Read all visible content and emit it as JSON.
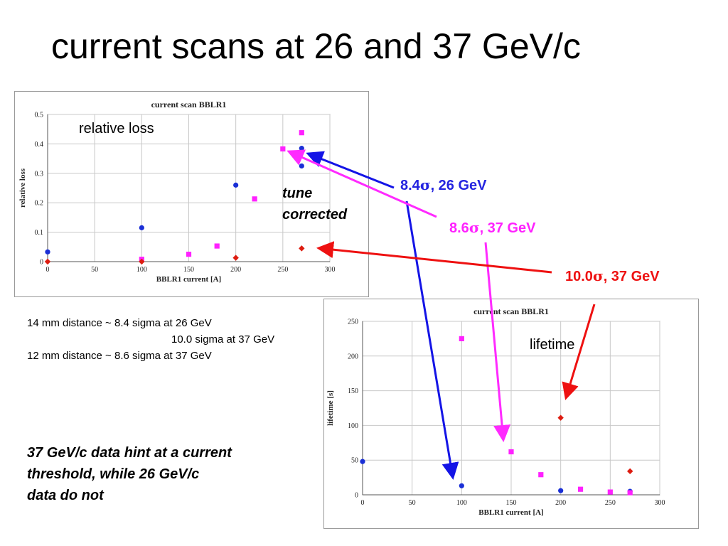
{
  "slide": {
    "title": "current scans at 26 and 37 GeV/c"
  },
  "colors": {
    "s84_26": "#1a2fd6",
    "s86_37": "#ff21ff",
    "s100_37": "#dd1c10",
    "arrow_blue": "#1414e6",
    "arrow_magenta": "#ff2aff",
    "arrow_red": "#ee1111"
  },
  "callouts": {
    "s84_26": {
      "value": "8.4",
      "sigma": "σ",
      "rest": ", 26 GeV"
    },
    "s86_37": {
      "value": "8.6",
      "sigma": "σ",
      "rest": ", 37 GeV"
    },
    "s100_37": {
      "value": "10.0",
      "sigma": "σ",
      "rest": ", 37 GeV"
    }
  },
  "annotations": {
    "tune_line1": "tune",
    "tune_line2": "corrected"
  },
  "notes": {
    "line1": "14 mm distance ~ 8.4 sigma at 26 GeV",
    "line2": "10.0 sigma at 37 GeV",
    "line3": "12 mm distance ~ 8.6 sigma at 37 GeV"
  },
  "conclusion": {
    "line1": "37 GeV/c data hint at a current",
    "line2": "threshold, while 26 GeV/c",
    "line3": "data do not"
  },
  "chart_data": [
    {
      "type": "scatter",
      "title": "current scan BBLR1",
      "inplot_label": "relative loss",
      "xlabel": "BBLR1 current [A]",
      "ylabel": "relative loss",
      "xlim": [
        0,
        300
      ],
      "ylim": [
        0,
        0.5
      ],
      "xticks": [
        0,
        50,
        100,
        150,
        200,
        250,
        300
      ],
      "yticks": [
        0,
        0.1,
        0.2,
        0.3,
        0.4,
        0.5
      ],
      "ytick_labels": [
        "0",
        "0.1",
        "0.2",
        "0.3",
        "0.4",
        "0.5"
      ],
      "grid": true,
      "series": [
        {
          "color": "#1a2fd6",
          "marker": "circle",
          "x": [
            0,
            100,
            200,
            270,
            270
          ],
          "y": [
            0.033,
            0.115,
            0.26,
            0.385,
            0.325
          ]
        },
        {
          "color": "#ff21ff",
          "marker": "square",
          "x": [
            100,
            150,
            180,
            220,
            250,
            270
          ],
          "y": [
            0.008,
            0.025,
            0.053,
            0.213,
            0.383,
            0.438
          ]
        },
        {
          "color": "#dd1c10",
          "marker": "diamond",
          "x": [
            0,
            100,
            200,
            270
          ],
          "y": [
            0.0,
            0.0,
            0.013,
            0.045
          ]
        }
      ]
    },
    {
      "type": "scatter",
      "title": "current scan BBLR1",
      "inplot_label": "lifetime",
      "xlabel": "BBLR1 current [A]",
      "ylabel": "lifetime [s]",
      "xlim": [
        0,
        300
      ],
      "ylim": [
        0,
        250
      ],
      "xticks": [
        0,
        50,
        100,
        150,
        200,
        250,
        300
      ],
      "yticks": [
        0,
        50,
        100,
        150,
        200,
        250
      ],
      "ytick_labels": [
        "0",
        "50",
        "100",
        "150",
        "200",
        "250"
      ],
      "grid": true,
      "series": [
        {
          "color": "#1a2fd6",
          "marker": "circle",
          "x": [
            0,
            100,
            200,
            270
          ],
          "y": [
            48,
            13,
            6,
            5
          ]
        },
        {
          "color": "#ff21ff",
          "marker": "square",
          "x": [
            100,
            150,
            180,
            220,
            250,
            270
          ],
          "y": [
            225,
            62,
            29,
            8,
            4,
            3
          ]
        },
        {
          "color": "#dd1c10",
          "marker": "diamond",
          "x": [
            200,
            270
          ],
          "y": [
            111,
            34
          ]
        }
      ]
    }
  ]
}
